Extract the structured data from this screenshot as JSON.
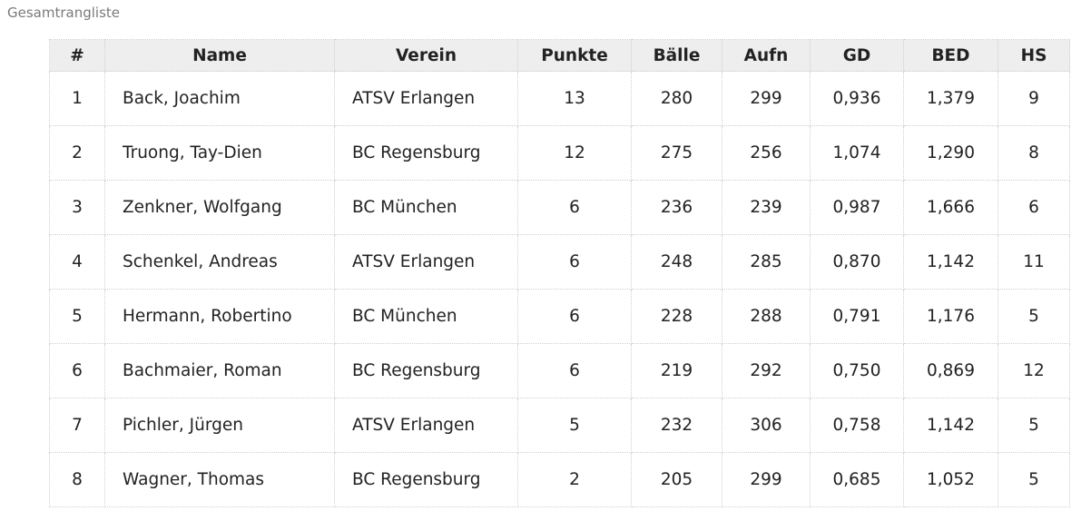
{
  "page": {
    "title": "Gesamtrangliste"
  },
  "table": {
    "headers": [
      "#",
      "Name",
      "Verein",
      "Punkte",
      "Bälle",
      "Aufn",
      "GD",
      "BED",
      "HS"
    ],
    "rows": [
      [
        "1",
        "Back, Joachim",
        "ATSV Erlangen",
        "13",
        "280",
        "299",
        "0,936",
        "1,379",
        "9"
      ],
      [
        "2",
        "Truong, Tay-Dien",
        "BC Regensburg",
        "12",
        "275",
        "256",
        "1,074",
        "1,290",
        "8"
      ],
      [
        "3",
        "Zenkner, Wolfgang",
        "BC München",
        "6",
        "236",
        "239",
        "0,987",
        "1,666",
        "6"
      ],
      [
        "4",
        "Schenkel, Andreas",
        "ATSV Erlangen",
        "6",
        "248",
        "285",
        "0,870",
        "1,142",
        "11"
      ],
      [
        "5",
        "Hermann, Robertino",
        "BC München",
        "6",
        "228",
        "288",
        "0,791",
        "1,176",
        "5"
      ],
      [
        "6",
        "Bachmaier, Roman",
        "BC Regensburg",
        "6",
        "219",
        "292",
        "0,750",
        "0,869",
        "12"
      ],
      [
        "7",
        "Pichler, Jürgen",
        "ATSV Erlangen",
        "5",
        "232",
        "306",
        "0,758",
        "1,142",
        "5"
      ],
      [
        "8",
        "Wagner, Thomas",
        "BC Regensburg",
        "2",
        "205",
        "299",
        "0,685",
        "1,052",
        "5"
      ]
    ]
  }
}
